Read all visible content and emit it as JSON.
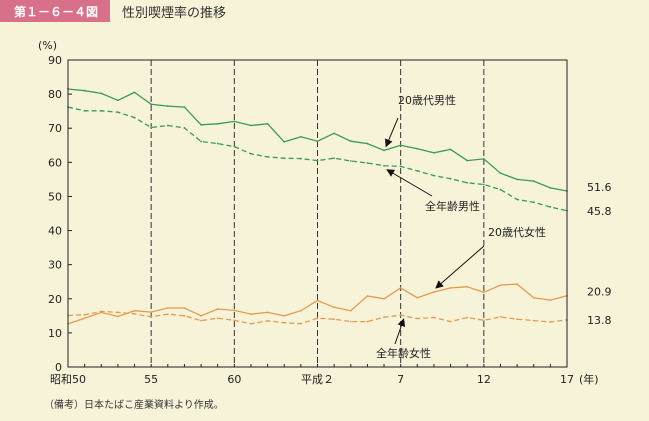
{
  "header": {
    "figure_label": "第１－６－４図",
    "title": "性別喫煙率の推移"
  },
  "note": "（備考）日本たばこ産業資料より作成。",
  "colors": {
    "male": "#3a9a5a",
    "female": "#e69a4e",
    "header_bg": "#d9708a",
    "page_bg": "#f7f3d9"
  },
  "chart_data": {
    "type": "line",
    "ylabel": "(%)",
    "xunit": "(年)",
    "ylim": [
      0,
      90
    ],
    "yticks": [
      "0",
      "10",
      "20",
      "30",
      "40",
      "50",
      "60",
      "70",
      "80",
      "90"
    ],
    "xtick_labels": [
      "昭和50",
      "55",
      "60",
      "平成２",
      "7",
      "12",
      "17"
    ],
    "x": [
      1975,
      1976,
      1977,
      1978,
      1979,
      1980,
      1981,
      1982,
      1983,
      1984,
      1985,
      1986,
      1987,
      1988,
      1989,
      1990,
      1991,
      1992,
      1993,
      1994,
      1995,
      1996,
      1997,
      1998,
      1999,
      2000,
      2001,
      2002,
      2003,
      2004,
      2005
    ],
    "series": [
      {
        "name": "20歳代男性",
        "style": "solid",
        "color": "#3a9a5a",
        "values": [
          81.5,
          81.0,
          80.2,
          78.2,
          80.5,
          77.0,
          76.5,
          76.2,
          71.0,
          71.3,
          72.0,
          70.8,
          71.3,
          66.0,
          67.5,
          66.2,
          68.5,
          66.2,
          65.5,
          63.5,
          65.0,
          64.0,
          62.8,
          63.8,
          60.5,
          61.0,
          56.8,
          55.0,
          54.5,
          52.5,
          51.6
        ]
      },
      {
        "name": "全年齢男性",
        "style": "dashed",
        "color": "#3a9a5a",
        "values": [
          76.2,
          75.1,
          75.1,
          74.7,
          73.1,
          70.2,
          70.8,
          70.1,
          66.1,
          65.5,
          64.6,
          62.5,
          61.6,
          61.2,
          61.1,
          60.5,
          61.2,
          60.4,
          59.8,
          59.0,
          58.8,
          57.5,
          56.1,
          55.2,
          54.0,
          53.5,
          52.0,
          49.1,
          48.3,
          46.9,
          45.8
        ]
      },
      {
        "name": "20歳代女性",
        "style": "solid",
        "color": "#e69a4e",
        "values": [
          12.7,
          14.3,
          16.0,
          14.8,
          16.5,
          16.1,
          17.3,
          17.3,
          15.0,
          17.0,
          16.6,
          15.5,
          16.0,
          15.0,
          16.5,
          19.5,
          17.5,
          16.5,
          20.8,
          20.0,
          23.2,
          20.3,
          22.0,
          23.2,
          23.5,
          21.9,
          24.0,
          24.3,
          20.3,
          19.6,
          20.9
        ]
      },
      {
        "name": "全年齢女性",
        "style": "dashed",
        "color": "#e69a4e",
        "values": [
          15.1,
          15.3,
          16.3,
          16.0,
          15.6,
          14.7,
          15.5,
          15.0,
          13.6,
          14.3,
          13.7,
          12.7,
          13.5,
          13.0,
          12.7,
          14.3,
          14.0,
          13.3,
          13.3,
          14.6,
          15.2,
          14.2,
          14.5,
          13.3,
          14.5,
          13.7,
          14.7,
          14.0,
          13.6,
          13.2,
          13.8
        ]
      }
    ],
    "end_labels": [
      "51.6",
      "45.8",
      "20.9",
      "13.8"
    ],
    "vlines_years": [
      1980,
      1985,
      1990,
      1995,
      2000
    ],
    "annotations": [
      {
        "text": "20歳代男性",
        "series": 0,
        "point_year": 1994
      },
      {
        "text": "全年齢男性",
        "series": 1,
        "point_year": 1994
      },
      {
        "text": "20歳代女性",
        "series": 2,
        "point_year": 1997
      },
      {
        "text": "全年齢女性",
        "series": 3,
        "point_year": 1995
      }
    ]
  }
}
